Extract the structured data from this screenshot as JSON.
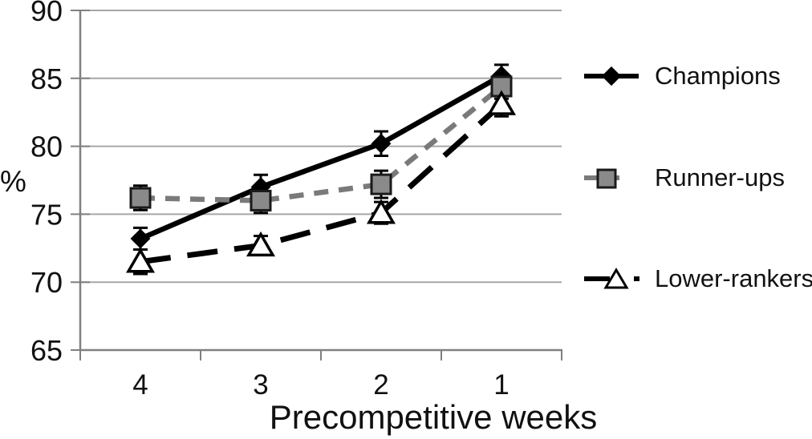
{
  "chart_data": {
    "type": "line",
    "title": "",
    "xlabel": "Precompetitive weeks",
    "ylabel": "%",
    "categories": [
      "4",
      "3",
      "2",
      "1"
    ],
    "ylim": [
      65,
      90
    ],
    "yticks": [
      65,
      70,
      75,
      80,
      85,
      90
    ],
    "grid": true,
    "legend_position": "right",
    "series": [
      {
        "name": "Champions",
        "values": [
          73.2,
          77.0,
          80.2,
          85.2
        ],
        "errors": [
          0.8,
          0.9,
          0.9,
          0.8
        ],
        "color": "#000000",
        "line_style": "solid",
        "marker": "diamond",
        "marker_fill": "#000000",
        "marker_stroke": "#000000"
      },
      {
        "name": "Runner-ups",
        "values": [
          76.2,
          76.0,
          77.2,
          84.4
        ],
        "errors": [
          0.9,
          0.9,
          1.0,
          0.9
        ],
        "color": "#7a7a7a",
        "line_style": "dashed",
        "marker": "square",
        "marker_fill": "#8a8a8a",
        "marker_stroke": "#1a1a1a"
      },
      {
        "name": "Lower-rankers",
        "values": [
          71.5,
          72.7,
          75.1,
          83.1
        ],
        "errors": [
          0.9,
          0.7,
          0.8,
          0.9
        ],
        "color": "#000000",
        "line_style": "long-dash",
        "marker": "triangle",
        "marker_fill": "#ffffff",
        "marker_stroke": "#000000"
      }
    ],
    "colors": {
      "gridline": "#a6a6a6",
      "axis": "#808080",
      "tick_label": "#111111",
      "error_bar": "#000000"
    }
  }
}
